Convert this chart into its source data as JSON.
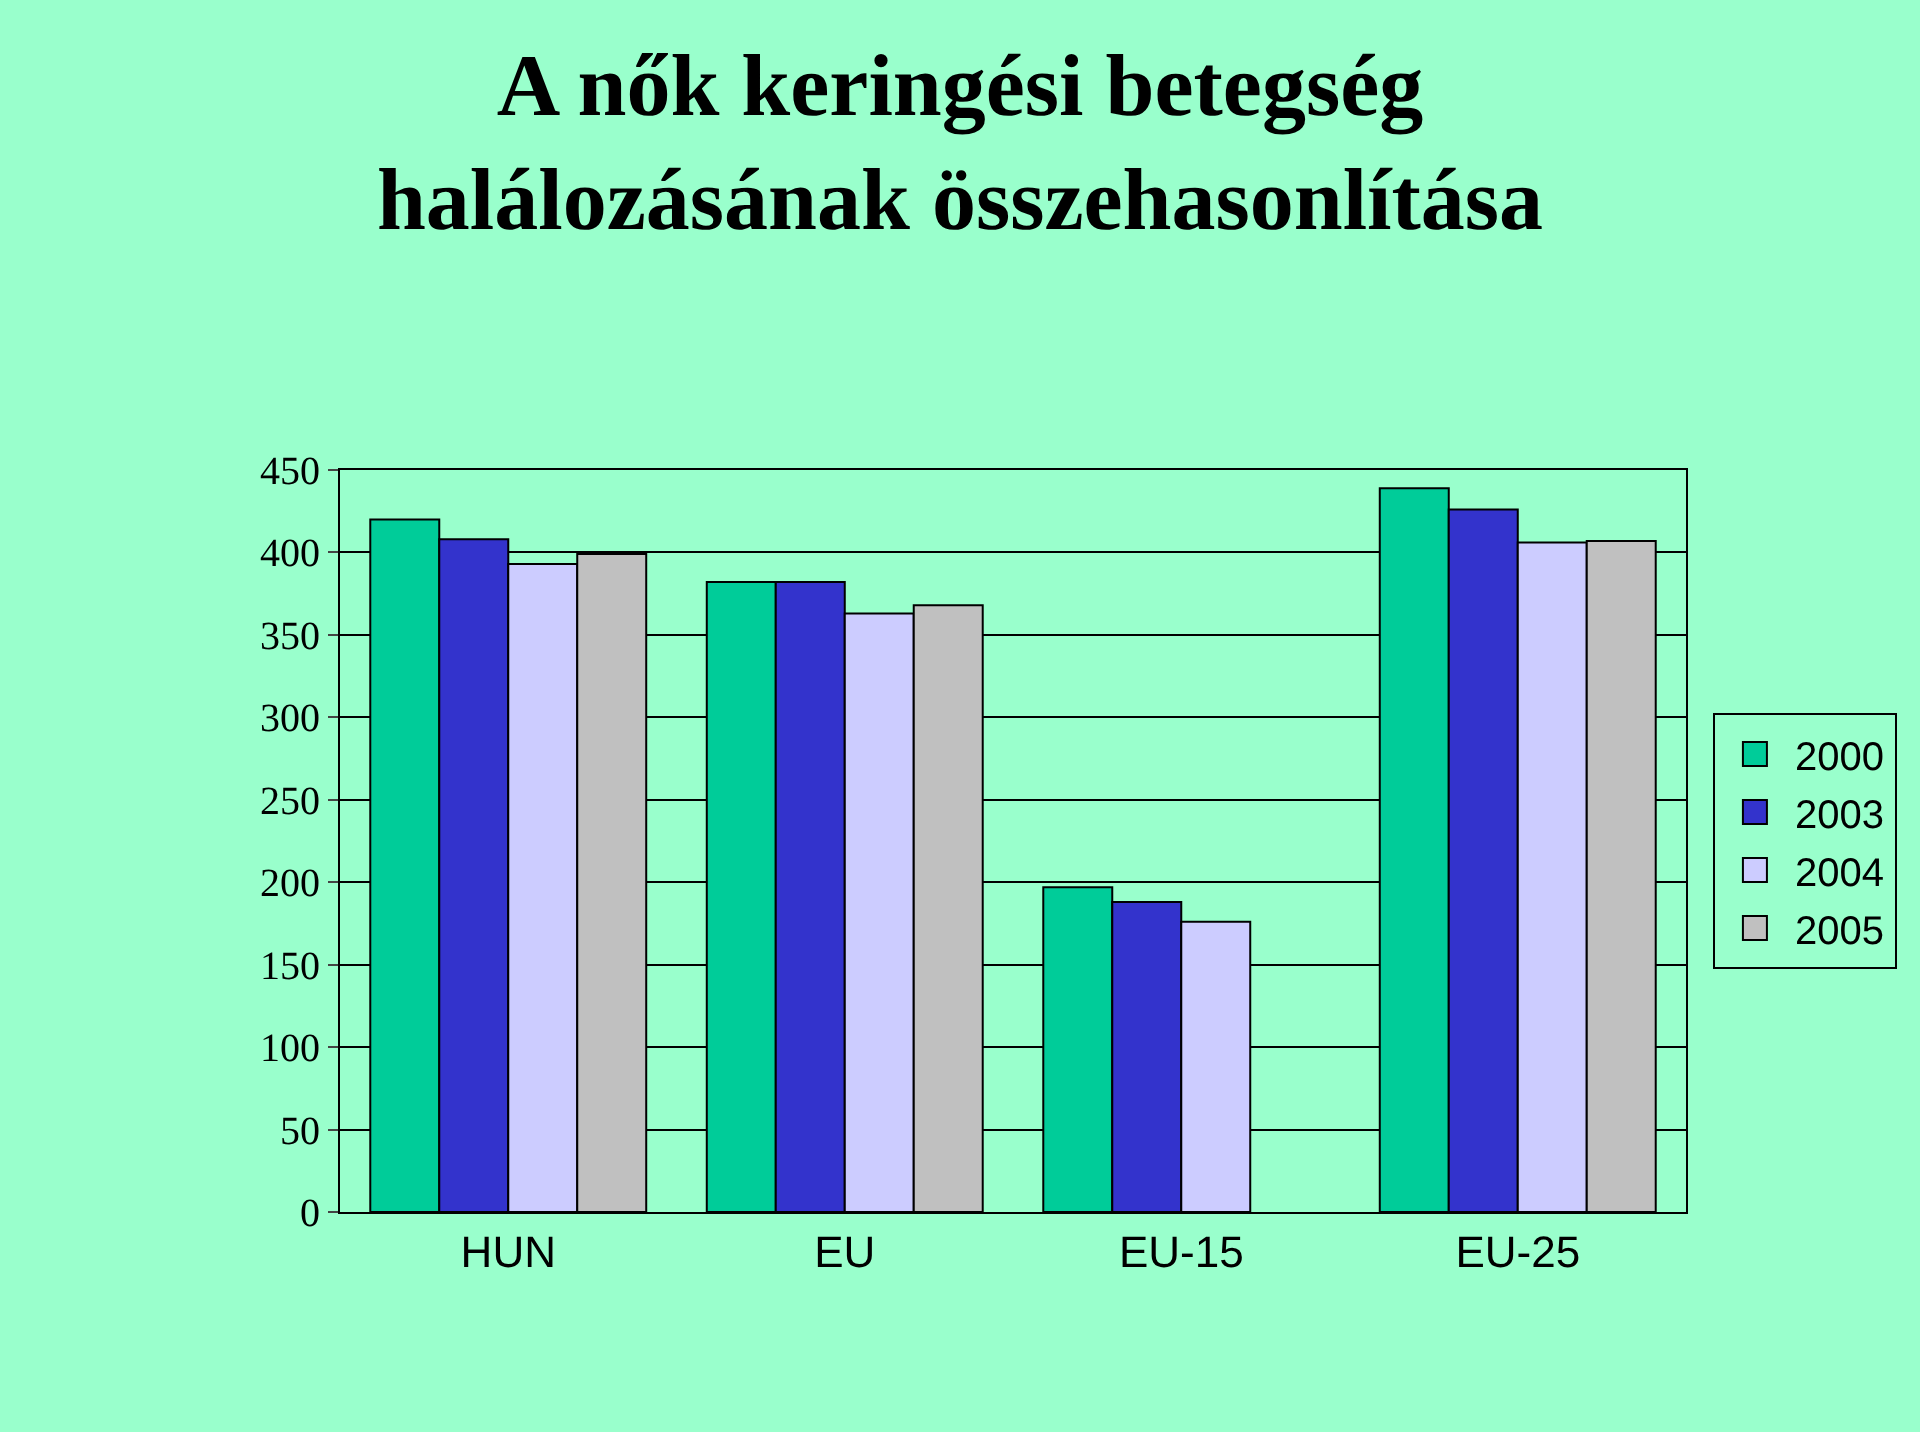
{
  "chart_data": {
    "type": "bar",
    "title": "A nők keringési betegség\nhalálozásának összehasonlítása",
    "categories": [
      "HUN",
      "EU",
      "EU-15",
      "EU-25"
    ],
    "series": [
      {
        "name": "2000",
        "color": "#00cc99",
        "values": [
          420,
          382,
          197,
          439
        ]
      },
      {
        "name": "2003",
        "color": "#3333cc",
        "values": [
          408,
          382,
          188,
          426
        ]
      },
      {
        "name": "2004",
        "color": "#ccccff",
        "values": [
          393,
          363,
          176,
          406
        ]
      },
      {
        "name": "2005",
        "color": "#c0c0c0",
        "values": [
          399,
          368,
          null,
          407
        ]
      }
    ],
    "ylim": [
      0,
      450
    ],
    "yticks": [
      0,
      50,
      100,
      150,
      200,
      250,
      300,
      350,
      400,
      450
    ],
    "grid": "y",
    "legend": "right"
  }
}
